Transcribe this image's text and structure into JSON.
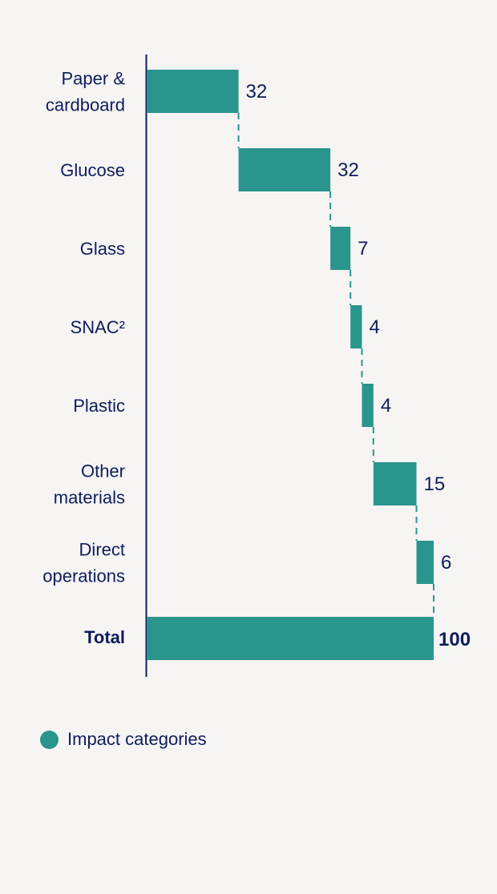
{
  "chart_data": {
    "type": "waterfall",
    "orientation": "horizontal",
    "categories": [
      [
        "Paper &",
        "cardboard"
      ],
      [
        "Glucose"
      ],
      [
        "Glass"
      ],
      [
        "SNAC²"
      ],
      [
        "Plastic"
      ],
      [
        "Other",
        "materials"
      ],
      [
        "Direct",
        "operations"
      ]
    ],
    "values": [
      32,
      32,
      7,
      4,
      4,
      15,
      6
    ],
    "value_labels": [
      "32",
      "32",
      "7",
      "4",
      "4",
      "15",
      "6"
    ],
    "total": {
      "label": "Total",
      "value": 100,
      "value_label": "100"
    },
    "xlim": [
      0,
      100
    ],
    "legend": {
      "label": "Impact categories",
      "color": "#2a958c",
      "position": "bottom-left"
    }
  },
  "colors": {
    "bar": "#2a958c",
    "text": "#0f1c5c",
    "axis": "#0f1c5c",
    "connector": "#2a958c",
    "background": "#f6f5f4"
  }
}
